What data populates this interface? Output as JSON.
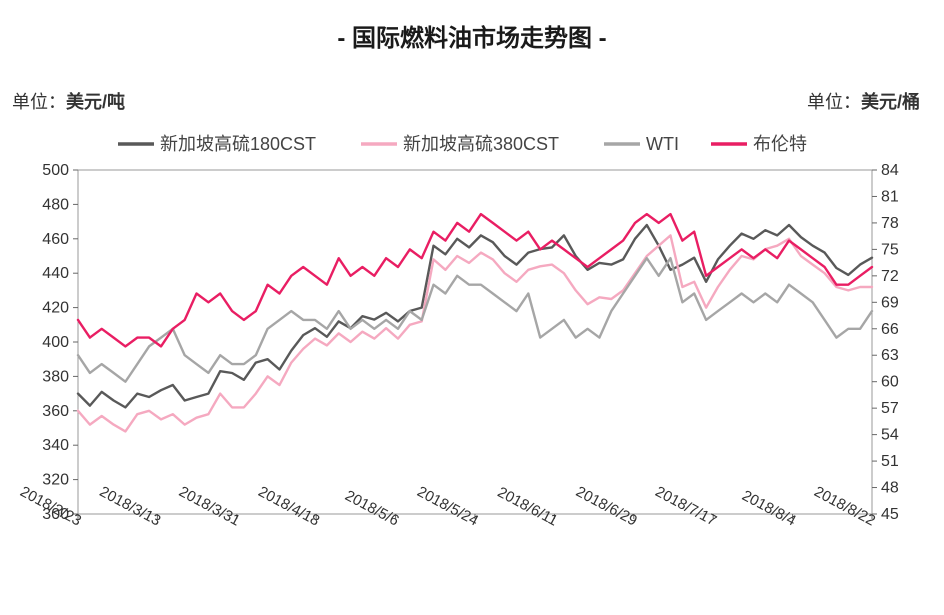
{
  "title": "- 国际燃料油市场走势图 -",
  "unit_left_prefix": "单位：",
  "unit_left_value": "美元/吨",
  "unit_right_prefix": "单位：",
  "unit_right_value": "美元/桶",
  "chart": {
    "type": "line",
    "title_fontsize": 24,
    "background_color": "#ffffff",
    "plot_border_color": "#999999",
    "plot_border_width": 1,
    "grid_on": false,
    "y_left": {
      "min": 300,
      "max": 500,
      "step": 20
    },
    "y_right": {
      "min": 45,
      "max": 84,
      "step": 3
    },
    "x_labels": [
      "2018/2/23",
      "2018/3/13",
      "2018/3/31",
      "2018/4/18",
      "2018/5/6",
      "2018/5/24",
      "2018/6/11",
      "2018/6/29",
      "2018/7/17",
      "2018/8/4",
      "2018/8/22"
    ],
    "x_label_rotate_deg": 28,
    "line_width": 2.4,
    "series": [
      {
        "name": "新加坡高硫180CST",
        "axis": "left",
        "color": "#595959",
        "values": [
          370,
          363,
          371,
          366,
          362,
          370,
          368,
          372,
          375,
          366,
          368,
          370,
          383,
          382,
          378,
          388,
          390,
          384,
          395,
          404,
          408,
          403,
          412,
          408,
          415,
          413,
          417,
          412,
          418,
          420,
          456,
          451,
          460,
          455,
          462,
          458,
          450,
          445,
          452,
          454,
          455,
          462,
          450,
          442,
          446,
          445,
          448,
          460,
          468,
          456,
          442,
          445,
          449,
          435,
          448,
          456,
          463,
          460,
          465,
          462,
          468,
          461,
          456,
          452,
          443,
          439,
          445,
          449
        ]
      },
      {
        "name": "新加坡高硫380CST",
        "axis": "left",
        "color": "#f5a9c0",
        "values": [
          360,
          352,
          357,
          352,
          348,
          358,
          360,
          355,
          358,
          352,
          356,
          358,
          370,
          362,
          362,
          370,
          380,
          375,
          388,
          396,
          402,
          398,
          405,
          400,
          406,
          402,
          408,
          402,
          410,
          412,
          448,
          442,
          450,
          446,
          452,
          448,
          440,
          435,
          442,
          444,
          445,
          440,
          430,
          422,
          426,
          425,
          430,
          440,
          450,
          456,
          462,
          432,
          435,
          420,
          432,
          442,
          450,
          448,
          454,
          456,
          460,
          450,
          445,
          440,
          432,
          430,
          432,
          432
        ]
      },
      {
        "name": "WTI",
        "axis": "right",
        "color": "#a6a6a6",
        "values": [
          63,
          61,
          62,
          61,
          60,
          62,
          64,
          65,
          66,
          63,
          62,
          61,
          63,
          62,
          62,
          63,
          66,
          67,
          68,
          67,
          67,
          66,
          68,
          66,
          67,
          66,
          67,
          66,
          68,
          67,
          71,
          70,
          72,
          71,
          71,
          70,
          69,
          68,
          70,
          65,
          66,
          67,
          65,
          66,
          65,
          68,
          70,
          72,
          74,
          72,
          74,
          69,
          70,
          67,
          68,
          69,
          70,
          69,
          70,
          69,
          71,
          70,
          69,
          67,
          65,
          66,
          66,
          68
        ]
      },
      {
        "name": "布伦特",
        "axis": "right",
        "color": "#e91e63",
        "values": [
          67,
          65,
          66,
          65,
          64,
          65,
          65,
          64,
          66,
          67,
          70,
          69,
          70,
          68,
          67,
          68,
          71,
          70,
          72,
          73,
          72,
          71,
          74,
          72,
          73,
          72,
          74,
          73,
          75,
          74,
          77,
          76,
          78,
          77,
          79,
          78,
          77,
          76,
          77,
          75,
          76,
          75,
          74,
          73,
          74,
          75,
          76,
          78,
          79,
          78,
          79,
          76,
          77,
          72,
          73,
          74,
          75,
          74,
          75,
          74,
          76,
          75,
          74,
          73,
          71,
          71,
          72,
          73
        ]
      }
    ],
    "legend": {
      "position": "top",
      "fontsize": 18,
      "line_length": 36,
      "line_width": 3.5
    },
    "axis_fontsize": 16,
    "x_axis_fontsize": 15
  }
}
